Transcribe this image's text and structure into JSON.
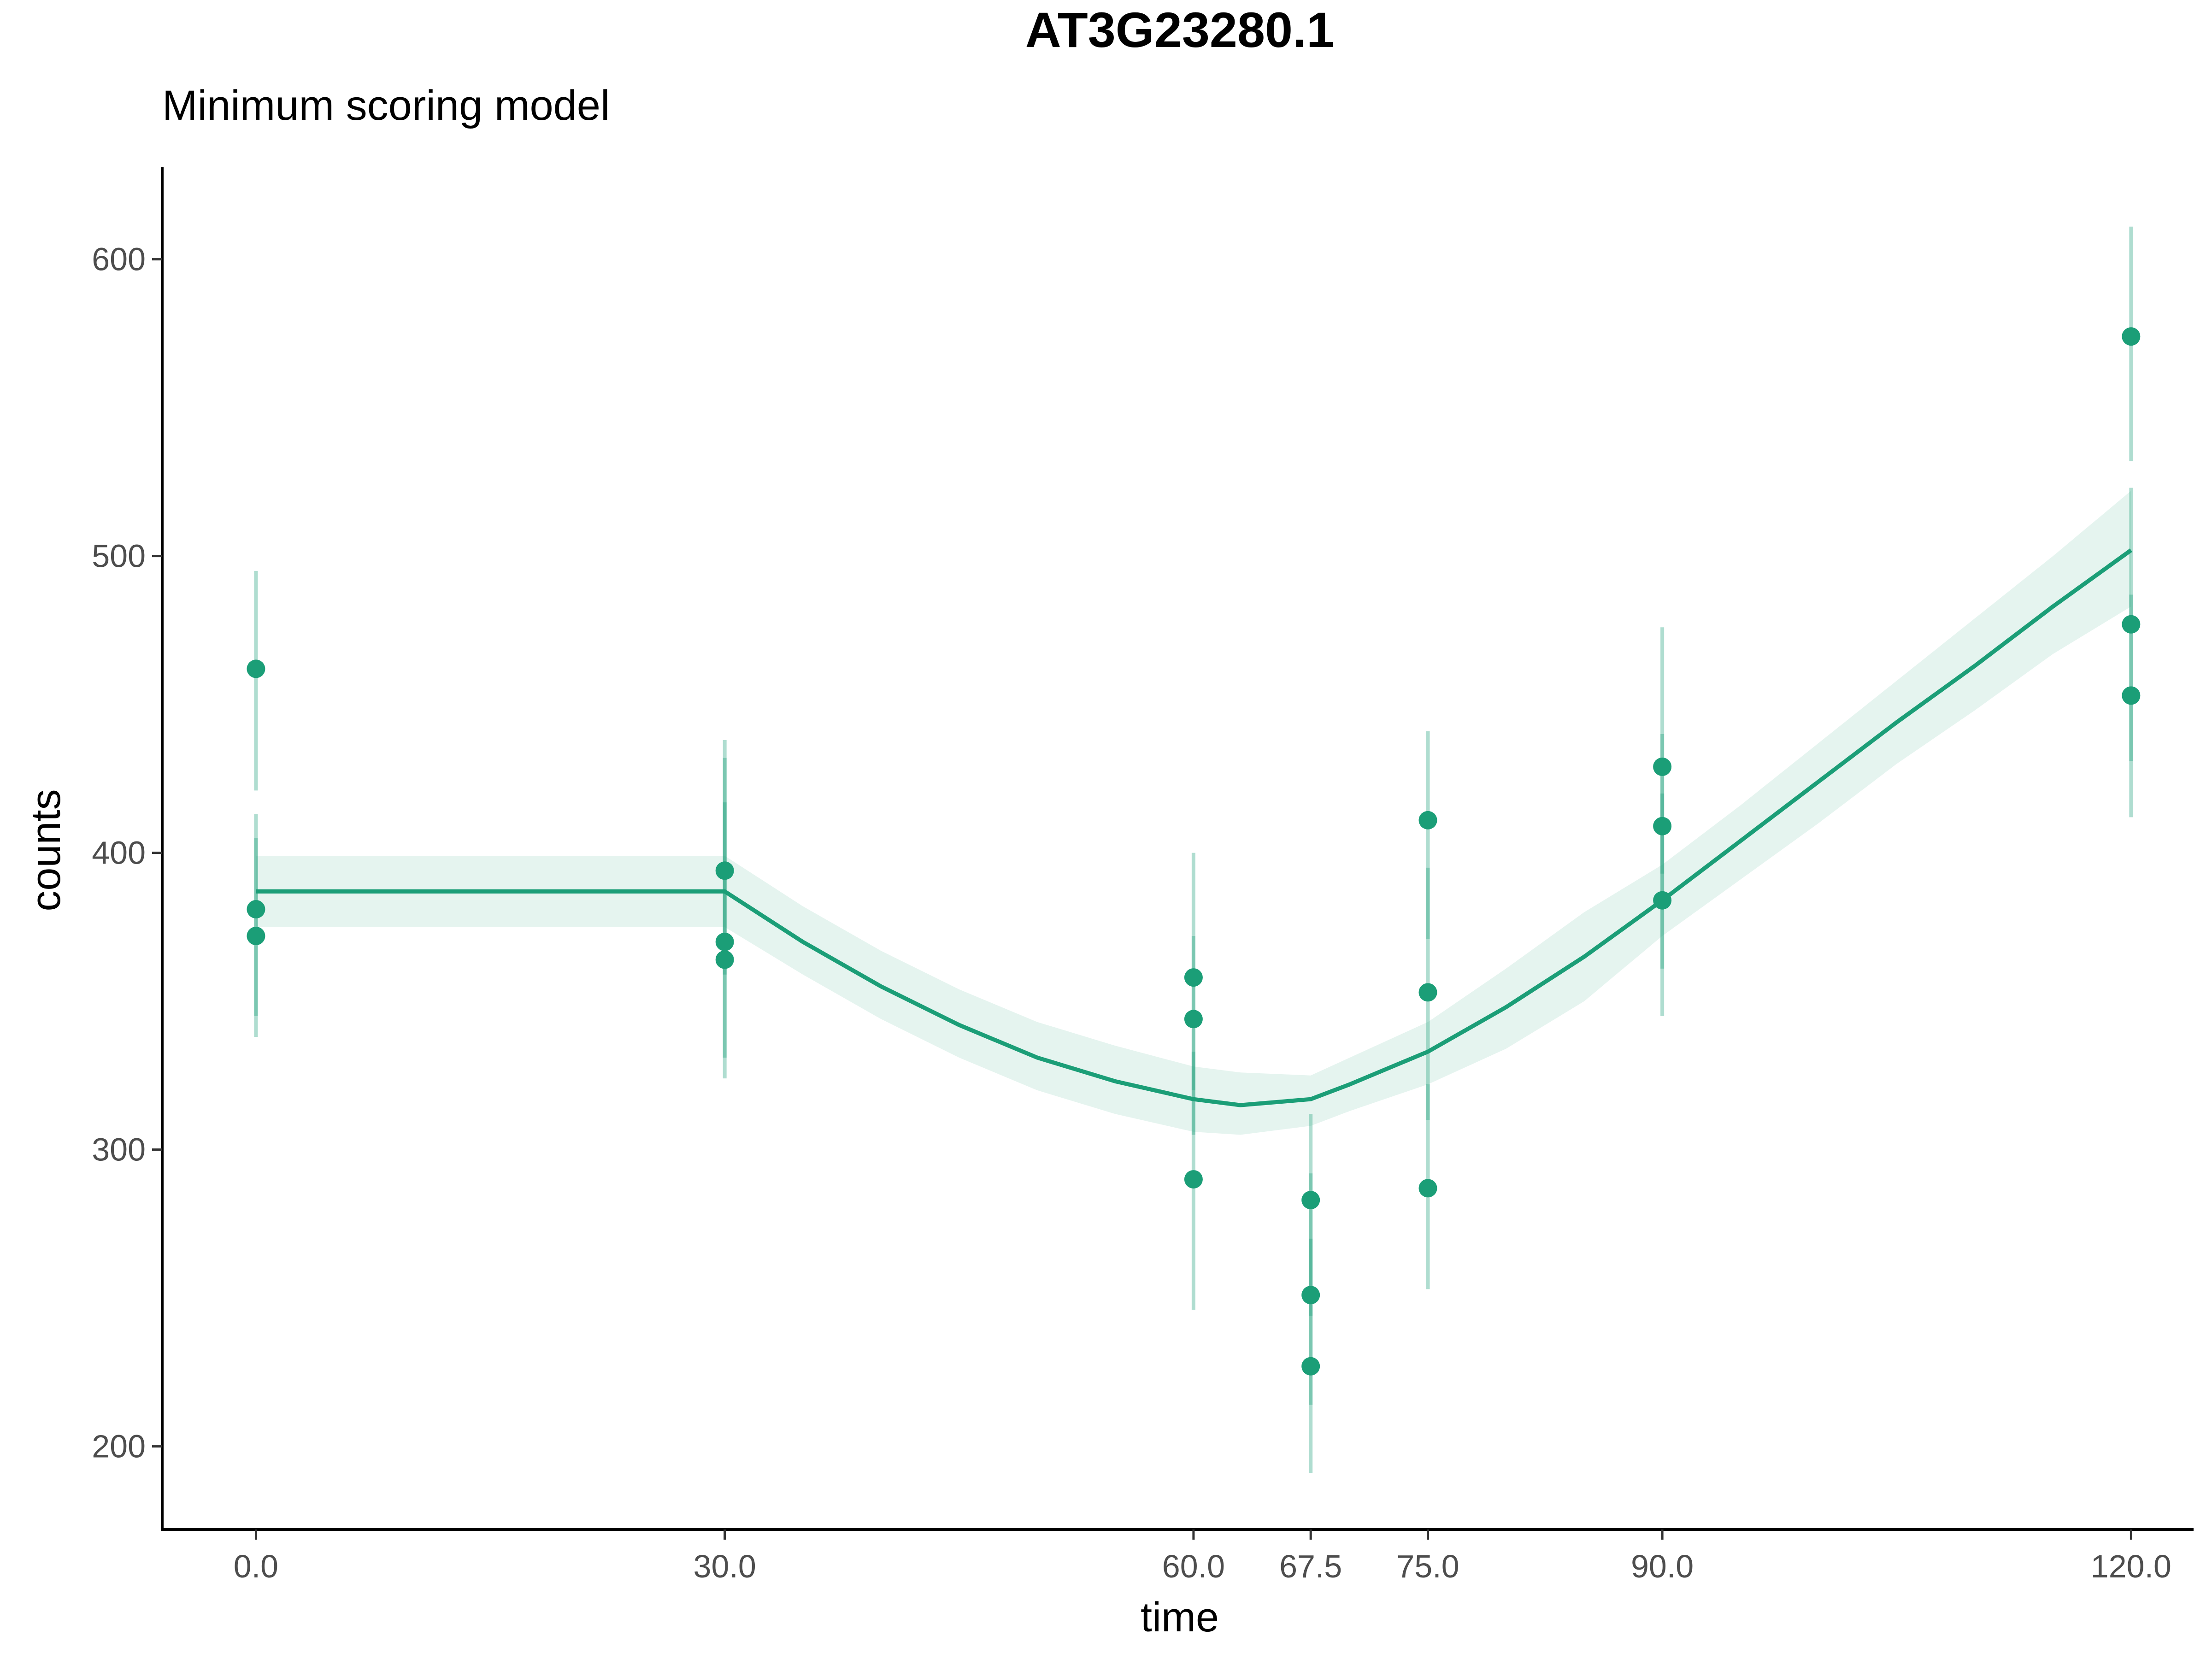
{
  "chart_data": {
    "type": "scatter",
    "title": "AT3G23280.1",
    "subtitle": "Minimum scoring model",
    "xlabel": "time",
    "ylabel": "counts",
    "xlim": [
      -6,
      124
    ],
    "ylim": [
      172,
      631
    ],
    "x_ticks": [
      0,
      30,
      60,
      67.5,
      75,
      90,
      120
    ],
    "x_tick_labels": [
      "0.0",
      "30.0",
      "60.0",
      "67.5",
      "75.0",
      "90.0",
      "120.0"
    ],
    "y_ticks": [
      200,
      300,
      400,
      500,
      600
    ],
    "y_tick_labels": [
      "200",
      "300",
      "400",
      "500",
      "600"
    ],
    "grid": false,
    "color": "#1b9e77",
    "band_color": "#e5f4ef",
    "errorbar_color": "#a8dccb",
    "points": [
      {
        "x": 0,
        "y": 462,
        "lo": 421,
        "hi": 495
      },
      {
        "x": 0,
        "y": 381,
        "lo": 345,
        "hi": 413
      },
      {
        "x": 0,
        "y": 372,
        "lo": 338,
        "hi": 405
      },
      {
        "x": 30,
        "y": 394,
        "lo": 359,
        "hi": 438
      },
      {
        "x": 30,
        "y": 370,
        "lo": 331,
        "hi": 432
      },
      {
        "x": 30,
        "y": 364,
        "lo": 324,
        "hi": 417
      },
      {
        "x": 60,
        "y": 358,
        "lo": 320,
        "hi": 400
      },
      {
        "x": 60,
        "y": 344,
        "lo": 305,
        "hi": 372
      },
      {
        "x": 60,
        "y": 290,
        "lo": 246,
        "hi": 333
      },
      {
        "x": 67.5,
        "y": 283,
        "lo": 244,
        "hi": 312
      },
      {
        "x": 67.5,
        "y": 251,
        "lo": 214,
        "hi": 292
      },
      {
        "x": 67.5,
        "y": 227,
        "lo": 191,
        "hi": 270
      },
      {
        "x": 75,
        "y": 411,
        "lo": 371,
        "hi": 441
      },
      {
        "x": 75,
        "y": 353,
        "lo": 310,
        "hi": 395
      },
      {
        "x": 75,
        "y": 287,
        "lo": 253,
        "hi": 322
      },
      {
        "x": 90,
        "y": 429,
        "lo": 393,
        "hi": 476
      },
      {
        "x": 90,
        "y": 409,
        "lo": 361,
        "hi": 440
      },
      {
        "x": 90,
        "y": 384,
        "lo": 345,
        "hi": 420
      },
      {
        "x": 120,
        "y": 574,
        "lo": 532,
        "hi": 611
      },
      {
        "x": 120,
        "y": 477,
        "lo": 431,
        "hi": 523
      },
      {
        "x": 120,
        "y": 453,
        "lo": 412,
        "hi": 487
      }
    ],
    "fit_line": {
      "x": [
        0,
        30,
        35,
        40,
        45,
        50,
        55,
        60,
        63,
        67.5,
        70,
        75,
        80,
        85,
        90,
        95,
        100,
        105,
        110,
        115,
        120
      ],
      "y": [
        387,
        387,
        370,
        355,
        342,
        331,
        323,
        317,
        315,
        317,
        322,
        333,
        348,
        365,
        384,
        404,
        424,
        444,
        463,
        483,
        502
      ],
      "lo": [
        375,
        375,
        359,
        344,
        331,
        320,
        312,
        306,
        305,
        308,
        313,
        322,
        334,
        350,
        372,
        391,
        410,
        430,
        448,
        467,
        483
      ],
      "hi": [
        399,
        399,
        382,
        367,
        354,
        343,
        335,
        328,
        326,
        325,
        331,
        343,
        361,
        380,
        396,
        416,
        437,
        458,
        479,
        500,
        522
      ]
    }
  }
}
